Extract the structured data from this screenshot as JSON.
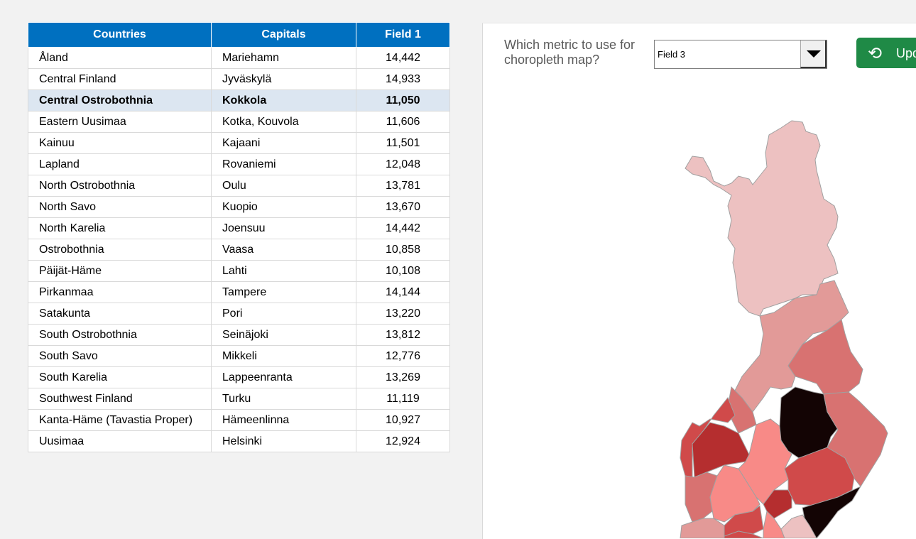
{
  "table": {
    "headers": [
      "Countries",
      "Capitals",
      "Field 1"
    ],
    "selected_index": 2,
    "rows": [
      [
        "Åland",
        "Mariehamn",
        "14,442"
      ],
      [
        "Central Finland",
        "Jyväskylä",
        "14,933"
      ],
      [
        "Central Ostrobothnia",
        "Kokkola",
        "11,050"
      ],
      [
        "Eastern Uusimaa",
        "Kotka, Kouvola",
        "11,606"
      ],
      [
        "Kainuu",
        "Kajaani",
        "11,501"
      ],
      [
        "Lapland",
        "Rovaniemi",
        "12,048"
      ],
      [
        "North Ostrobothnia",
        "Oulu",
        "13,781"
      ],
      [
        "North Savo",
        "Kuopio",
        "13,670"
      ],
      [
        "North Karelia",
        "Joensuu",
        "14,442"
      ],
      [
        "Ostrobothnia",
        "Vaasa",
        "10,858"
      ],
      [
        "Päijät-Häme",
        "Lahti",
        "10,108"
      ],
      [
        "Pirkanmaa",
        "Tampere",
        "14,144"
      ],
      [
        "Satakunta",
        "Pori",
        "13,220"
      ],
      [
        "South Ostrobothnia",
        "Seinäjoki",
        "13,812"
      ],
      [
        "South Savo",
        "Mikkeli",
        "12,776"
      ],
      [
        "South Karelia",
        "Lappeenranta",
        "13,269"
      ],
      [
        "Southwest Finland",
        "Turku",
        "11,119"
      ],
      [
        "Kanta-Häme (Tavastia Proper)",
        "Hämeenlinna",
        "10,927"
      ],
      [
        "Uusimaa",
        "Helsinki",
        "12,924"
      ]
    ]
  },
  "panel": {
    "question": "Which metric to use for choropleth map?",
    "metric_selected": "Field 3",
    "update_button": {
      "label": "Upd",
      "icon": "refresh-icon"
    }
  },
  "colors": {
    "header": "#0070c0",
    "button": "#1f8a46",
    "map_palette": [
      "#edc1c1",
      "#e29a98",
      "#d87271",
      "#f88a87",
      "#d04a4a",
      "#b52e2f",
      "#130404"
    ]
  }
}
